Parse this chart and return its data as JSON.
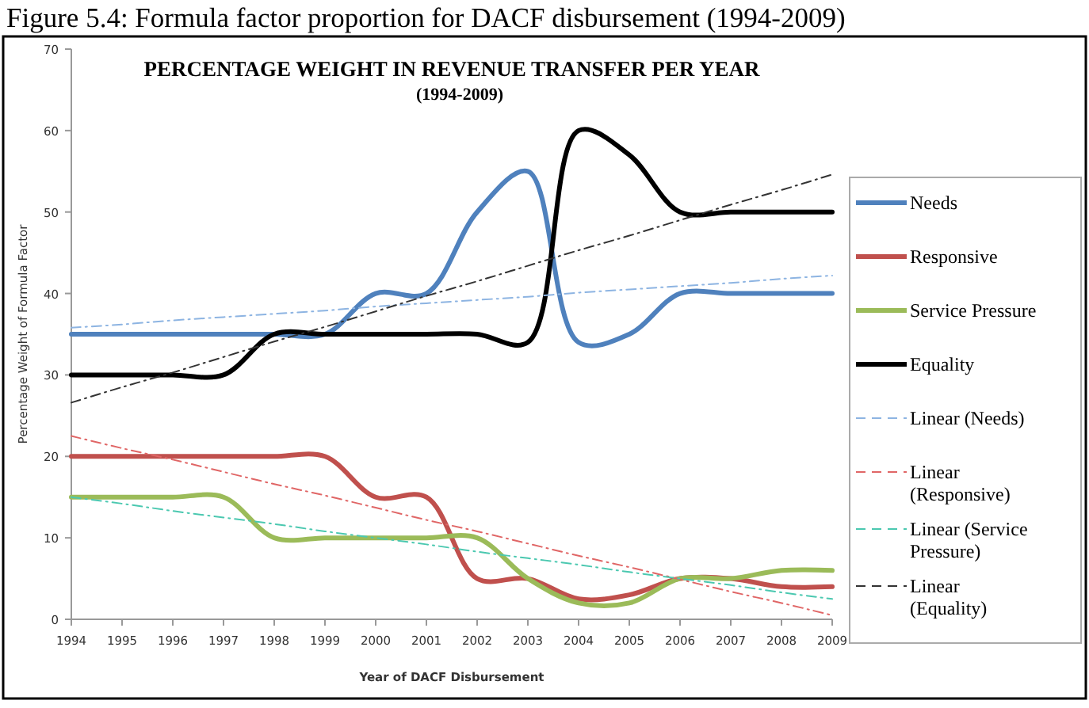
{
  "chart_data": {
    "type": "line",
    "title": "PERCENTAGE WEIGHT IN REVENUE TRANSFER PER YEAR",
    "subtitle": "(1994-2009)",
    "xlabel": "Year of DACF Disbursement",
    "ylabel": "Percentage Weight of Formula Factor",
    "annotations": [
      "Figure 5.4: Formula factor proportion for DACF disbursement (1994-2009)"
    ],
    "x": [
      1994,
      1995,
      1996,
      1997,
      1998,
      1999,
      2000,
      2001,
      2002,
      2003,
      2004,
      2005,
      2006,
      2007,
      2008,
      2009
    ],
    "series": [
      {
        "name": "Needs",
        "color": "#4f81bd",
        "values": [
          35,
          35,
          35,
          35,
          35,
          35,
          40,
          40,
          50,
          55,
          34,
          35,
          40,
          40,
          40,
          40
        ]
      },
      {
        "name": "Responsive",
        "color": "#c0504d",
        "values": [
          20,
          20,
          20,
          20,
          20,
          20,
          15,
          15,
          5,
          5,
          2.5,
          3,
          5,
          5,
          4,
          4
        ]
      },
      {
        "name": "Service Pressure",
        "color": "#9bbb59",
        "values": [
          15,
          15,
          15,
          15,
          10,
          10,
          10,
          10,
          10,
          5,
          2,
          2,
          5,
          5,
          6,
          6
        ]
      },
      {
        "name": "Equality",
        "color": "#000000",
        "values": [
          30,
          30,
          30,
          30,
          35,
          35,
          35,
          35,
          35,
          34,
          60,
          57,
          50,
          50,
          50,
          50
        ]
      },
      {
        "name": "Linear (Needs)",
        "color": "#8db4e2",
        "line_style": "dashed",
        "values": [
          35.8,
          36.2,
          36.7,
          37.1,
          37.5,
          37.9,
          38.4,
          38.8,
          39.2,
          39.6,
          40.1,
          40.5,
          40.9,
          41.3,
          41.8,
          42.2
        ]
      },
      {
        "name": "Linear (Responsive)",
        "color": "#e06666",
        "line_style": "dashed",
        "values": [
          22.5,
          21.0,
          19.6,
          18.1,
          16.6,
          15.2,
          13.7,
          12.2,
          10.8,
          9.3,
          7.8,
          6.4,
          4.9,
          3.4,
          2.0,
          0.5
        ]
      },
      {
        "name": "Linear (Service Pressure)",
        "color": "#4bc8b0",
        "line_style": "dashed",
        "values": [
          15,
          14.2,
          13.3,
          12.5,
          11.7,
          10.8,
          10,
          9.2,
          8.3,
          7.5,
          6.7,
          5.8,
          5,
          4.2,
          3.3,
          2.5
        ]
      },
      {
        "name": "Linear (Equality)",
        "color": "#333333",
        "line_style": "dashed",
        "values": [
          26.6,
          28.5,
          30.3,
          32.2,
          34.1,
          35.9,
          37.8,
          39.7,
          41.5,
          43.4,
          45.3,
          47.1,
          49,
          50.9,
          52.7,
          54.6
        ]
      }
    ],
    "xlim": [
      1994,
      2009
    ],
    "xticks": [
      1994,
      1995,
      1996,
      1997,
      1998,
      1999,
      2000,
      2001,
      2002,
      2003,
      2004,
      2005,
      2006,
      2007,
      2008,
      2009
    ],
    "ylim": [
      0,
      70
    ],
    "yticks": [
      0,
      10,
      20,
      30,
      40,
      50,
      60,
      70
    ],
    "grid": false,
    "legend": "right",
    "marker": "none"
  }
}
